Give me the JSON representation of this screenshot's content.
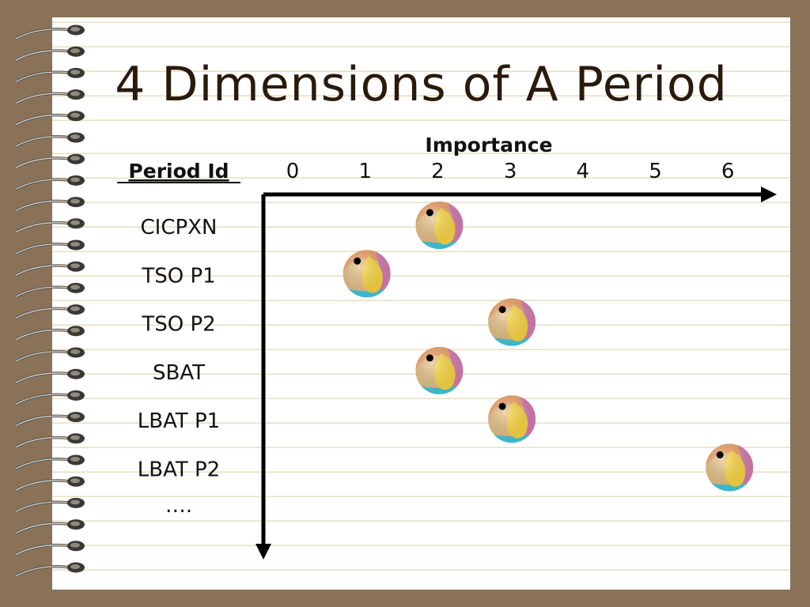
{
  "title": "4 Dimensions of A Period",
  "chart_data": {
    "type": "scatter",
    "xlabel": "Importance",
    "ylabel": "Period Id",
    "x_ticks": [
      "0",
      "1",
      "2",
      "3",
      "4",
      "5",
      "6"
    ],
    "xlim": [
      0,
      6
    ],
    "categories": [
      "CICPXN",
      "TSO P1",
      "TSO P2",
      "SBAT",
      "LBAT P1",
      "LBAT P2"
    ],
    "values": [
      2,
      1,
      3,
      2,
      3,
      6
    ],
    "trailing_label": "….",
    "marker": "beach-ball-icon",
    "colors": {
      "ink": "#111111",
      "axis": "#000000",
      "rule": "#e6dfc2",
      "border": "#8a7258"
    }
  }
}
